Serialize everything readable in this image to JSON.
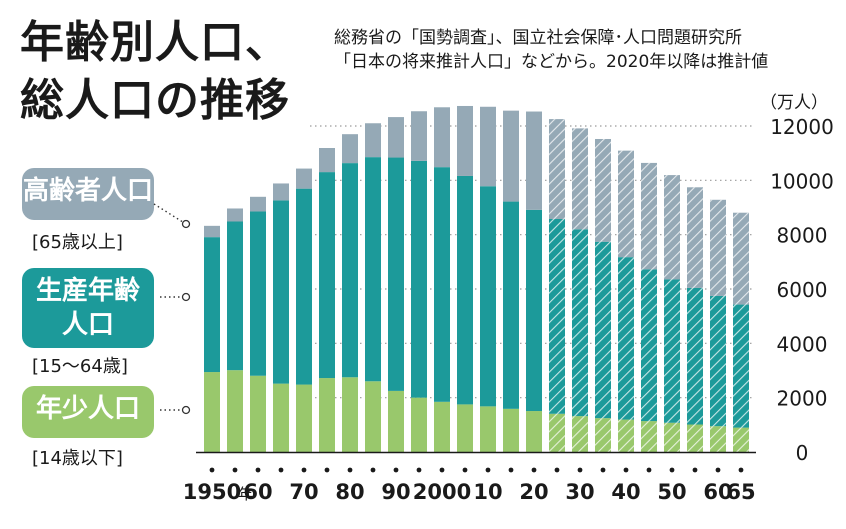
{
  "title": {
    "line1": "年齢別人口、",
    "line2": "総人口の推移"
  },
  "source": {
    "line1": "総務省の「国勢調査」、国立社会保障･人口問題研究所",
    "line2": "「日本の将来推計人口」などから。2020年以降は推計値"
  },
  "unit": "（万人）",
  "legend": {
    "elderly": {
      "label_line1": "高齢者人口",
      "label_line2": "",
      "range": "[65歳以上]"
    },
    "working": {
      "label_line1": "生産年齢",
      "label_line2": "人口",
      "range": "[15～64歳]"
    },
    "young": {
      "label_line1": "年少人口",
      "label_line2": "",
      "range": "[14歳以下]"
    }
  },
  "colors": {
    "elderly": "#95a9b6",
    "working": "#1c9a9a",
    "young": "#99c86c"
  },
  "chart_data": {
    "type": "bar",
    "stacked": true,
    "projected_from_index": 15,
    "ylim": [
      0,
      12000
    ],
    "yticks": [
      0,
      2000,
      4000,
      6000,
      8000,
      10000,
      12000
    ],
    "ytick_labels": [
      "0",
      "2000",
      "4000",
      "6000",
      "8000",
      "10000",
      "12000"
    ],
    "x_years": [
      1950,
      1955,
      1960,
      1965,
      1970,
      1975,
      1980,
      1985,
      1990,
      1995,
      2000,
      2005,
      2010,
      2015,
      2020,
      2025,
      2030,
      2035,
      2040,
      2045,
      2050,
      2055,
      2060,
      2065
    ],
    "x_tick_labels": [
      "1950",
      "",
      "60",
      "",
      "70",
      "",
      "80",
      "",
      "90",
      "",
      "2000",
      "",
      "10",
      "",
      "20",
      "",
      "30",
      "",
      "40",
      "",
      "50",
      "",
      "60",
      "65"
    ],
    "x_suffix": "年",
    "series": [
      {
        "name": "年少人口",
        "key": "young",
        "values": [
          2943,
          3012,
          2807,
          2517,
          2482,
          2722,
          2751,
          2603,
          2249,
          2001,
          1847,
          1752,
          1680,
          1589,
          1508,
          1407,
          1321,
          1246,
          1194,
          1138,
          1077,
          1012,
          951,
          898
        ]
      },
      {
        "name": "生産年齢人口",
        "key": "working",
        "values": [
          4966,
          5473,
          6047,
          6744,
          7212,
          7581,
          7883,
          8251,
          8590,
          8716,
          8638,
          8409,
          8103,
          7629,
          7406,
          7170,
          6875,
          6494,
          5978,
          5584,
          5275,
          5028,
          4793,
          4529
        ]
      },
      {
        "name": "高齢者人口",
        "key": "elderly",
        "values": [
          416,
          479,
          540,
          624,
          739,
          887,
          1065,
          1247,
          1489,
          1826,
          2204,
          2576,
          2925,
          3347,
          3619,
          3677,
          3716,
          3782,
          3921,
          3919,
          3841,
          3704,
          3540,
          3381
        ]
      }
    ]
  }
}
